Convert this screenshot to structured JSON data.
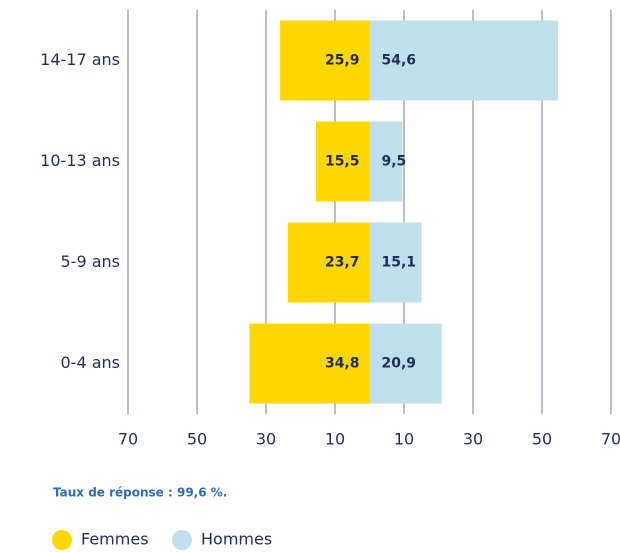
{
  "chart_data": {
    "type": "pyramid",
    "categories": [
      "14-17 ans",
      "10-13 ans",
      "5-9 ans",
      "0-4 ans"
    ],
    "series": [
      {
        "name": "Femmes",
        "color": "#ffd700",
        "values": [
          25.9,
          15.5,
          23.7,
          34.8
        ],
        "value_labels": [
          "25,9",
          "15,5",
          "23,7",
          "34,8"
        ]
      },
      {
        "name": "Hommes",
        "color": "#bfe0ea",
        "values": [
          54.6,
          9.5,
          15.1,
          20.9
        ],
        "value_labels": [
          "54,6",
          "9,5",
          "15,1",
          "20,9"
        ]
      }
    ],
    "xlim": [
      -70,
      70
    ],
    "xticks": [
      {
        "value": -70,
        "label": "70"
      },
      {
        "value": -50,
        "label": "50"
      },
      {
        "value": -30,
        "label": "30"
      },
      {
        "value": -10,
        "label": "10"
      },
      10,
      30,
      50,
      70
    ],
    "grid": true,
    "note": "Taux de réponse : 99,6 %."
  }
}
